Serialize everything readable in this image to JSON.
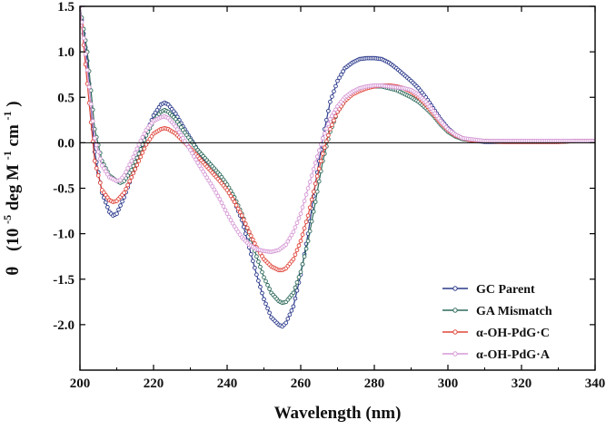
{
  "chart_data": {
    "type": "scatter",
    "title": "",
    "xlabel": "Wavelength (nm)",
    "ylabel": {
      "theta": "θ",
      "open": "(10",
      "exp": "-5",
      "deg": " deg M",
      "exp2": "-1",
      "cm": " cm",
      "exp3": "-1",
      "close": ")"
    },
    "xlim": [
      200,
      340
    ],
    "ylim": [
      -2.5,
      1.5
    ],
    "xticks": [
      200,
      220,
      240,
      260,
      280,
      300,
      320,
      340
    ],
    "xtick_labels": [
      "200",
      "220",
      "240",
      "260",
      "280",
      "300",
      "320",
      "340"
    ],
    "yticks": [
      -2.0,
      -1.5,
      -1.0,
      -0.5,
      0.0,
      0.5,
      1.0,
      1.5
    ],
    "ytick_labels": [
      "-2.0",
      "-1.5",
      "-1.0",
      "-0.5",
      "0.0",
      "0.5",
      "1.0",
      "1.5"
    ],
    "zero_line": true,
    "grid": false,
    "legend_position": "bottom-right",
    "series": [
      {
        "name": "GC Parent",
        "color": "#2c3a8c",
        "x": [
          200,
          202,
          204,
          206,
          208,
          209,
          210,
          212,
          214,
          216,
          218,
          220,
          222,
          223,
          224,
          226,
          228,
          230,
          232,
          234,
          236,
          238,
          240,
          242,
          244,
          246,
          248,
          250,
          252,
          254,
          255,
          256,
          258,
          260,
          262,
          264,
          266,
          268,
          270,
          272,
          274,
          276,
          278,
          280,
          282,
          284,
          286,
          288,
          290,
          292,
          294,
          296,
          298,
          300,
          302,
          304,
          306,
          308,
          310,
          315,
          320,
          325,
          330,
          335,
          340
        ],
        "y": [
          1.5,
          0.9,
          -0.1,
          -0.55,
          -0.76,
          -0.8,
          -0.78,
          -0.6,
          -0.38,
          -0.15,
          0.1,
          0.3,
          0.42,
          0.44,
          0.42,
          0.32,
          0.18,
          0.05,
          -0.08,
          -0.18,
          -0.28,
          -0.38,
          -0.5,
          -0.65,
          -0.85,
          -1.15,
          -1.45,
          -1.72,
          -1.92,
          -2.0,
          -2.02,
          -1.98,
          -1.8,
          -1.45,
          -1.0,
          -0.45,
          0.05,
          0.45,
          0.68,
          0.82,
          0.88,
          0.92,
          0.93,
          0.93,
          0.92,
          0.88,
          0.82,
          0.75,
          0.68,
          0.6,
          0.5,
          0.38,
          0.26,
          0.16,
          0.09,
          0.05,
          0.03,
          0.02,
          0.01,
          0.01,
          0.01,
          0.01,
          0.01,
          0.02,
          0.02
        ]
      },
      {
        "name": "GA Mismatch",
        "color": "#2f6b5c",
        "x": [
          200,
          202,
          204,
          206,
          208,
          210,
          211,
          212,
          214,
          216,
          218,
          220,
          222,
          223,
          224,
          226,
          228,
          230,
          232,
          234,
          236,
          238,
          240,
          242,
          244,
          246,
          248,
          250,
          252,
          254,
          255,
          256,
          258,
          260,
          262,
          264,
          266,
          268,
          270,
          272,
          274,
          276,
          278,
          280,
          282,
          284,
          286,
          288,
          290,
          292,
          294,
          296,
          298,
          300,
          302,
          304,
          306,
          308,
          310,
          315,
          320,
          325,
          330,
          335,
          340
        ],
        "y": [
          1.5,
          1.0,
          0.15,
          -0.2,
          -0.36,
          -0.42,
          -0.44,
          -0.42,
          -0.3,
          -0.12,
          0.08,
          0.24,
          0.34,
          0.36,
          0.34,
          0.26,
          0.14,
          0.03,
          -0.08,
          -0.17,
          -0.26,
          -0.35,
          -0.46,
          -0.6,
          -0.78,
          -1.0,
          -1.25,
          -1.48,
          -1.65,
          -1.74,
          -1.76,
          -1.75,
          -1.65,
          -1.42,
          -1.08,
          -0.65,
          -0.2,
          0.12,
          0.34,
          0.46,
          0.54,
          0.59,
          0.61,
          0.62,
          0.62,
          0.6,
          0.58,
          0.54,
          0.5,
          0.45,
          0.38,
          0.3,
          0.2,
          0.12,
          0.07,
          0.04,
          0.03,
          0.02,
          0.02,
          0.01,
          0.01,
          0.01,
          0.01,
          0.02,
          0.02
        ]
      },
      {
        "name": "α-OH-PdG·C",
        "color": "#e0473c",
        "x": [
          200,
          202,
          204,
          206,
          208,
          209,
          210,
          212,
          214,
          216,
          218,
          220,
          222,
          223,
          224,
          226,
          228,
          230,
          232,
          234,
          236,
          238,
          240,
          242,
          244,
          246,
          248,
          250,
          252,
          254,
          255,
          256,
          258,
          260,
          262,
          264,
          266,
          268,
          270,
          272,
          274,
          276,
          278,
          280,
          282,
          284,
          286,
          288,
          290,
          292,
          294,
          296,
          298,
          300,
          302,
          304,
          306,
          308,
          310,
          315,
          320,
          325,
          330,
          335,
          340
        ],
        "y": [
          1.5,
          0.65,
          -0.2,
          -0.52,
          -0.63,
          -0.65,
          -0.64,
          -0.55,
          -0.38,
          -0.2,
          -0.02,
          0.1,
          0.15,
          0.16,
          0.15,
          0.1,
          0.02,
          -0.06,
          -0.15,
          -0.24,
          -0.33,
          -0.42,
          -0.52,
          -0.65,
          -0.8,
          -0.98,
          -1.15,
          -1.28,
          -1.36,
          -1.4,
          -1.4,
          -1.38,
          -1.28,
          -1.08,
          -0.8,
          -0.45,
          -0.12,
          0.15,
          0.34,
          0.46,
          0.53,
          0.57,
          0.6,
          0.62,
          0.63,
          0.63,
          0.62,
          0.6,
          0.56,
          0.5,
          0.42,
          0.32,
          0.22,
          0.14,
          0.08,
          0.05,
          0.03,
          0.02,
          0.02,
          0.01,
          0.01,
          0.01,
          0.01,
          0.02,
          0.02
        ]
      },
      {
        "name": "α-OH-PdG·A",
        "color": "#d69ad6",
        "x": [
          200,
          202,
          204,
          206,
          208,
          210,
          211,
          212,
          214,
          216,
          218,
          220,
          222,
          223,
          224,
          226,
          228,
          230,
          232,
          234,
          236,
          238,
          240,
          242,
          244,
          246,
          248,
          250,
          252,
          254,
          256,
          258,
          260,
          262,
          264,
          266,
          268,
          270,
          272,
          274,
          276,
          278,
          280,
          282,
          284,
          286,
          288,
          290,
          292,
          294,
          296,
          298,
          300,
          302,
          304,
          306,
          308,
          310,
          315,
          320,
          325,
          330,
          335,
          340
        ],
        "y": [
          1.5,
          0.8,
          0.05,
          -0.25,
          -0.38,
          -0.42,
          -0.41,
          -0.36,
          -0.2,
          -0.02,
          0.14,
          0.24,
          0.28,
          0.29,
          0.27,
          0.18,
          0.05,
          -0.08,
          -0.22,
          -0.35,
          -0.48,
          -0.62,
          -0.78,
          -0.92,
          -1.04,
          -1.12,
          -1.17,
          -1.19,
          -1.2,
          -1.18,
          -1.12,
          -0.98,
          -0.78,
          -0.5,
          -0.22,
          0.05,
          0.26,
          0.4,
          0.5,
          0.56,
          0.6,
          0.62,
          0.63,
          0.63,
          0.62,
          0.61,
          0.6,
          0.58,
          0.53,
          0.45,
          0.35,
          0.24,
          0.15,
          0.09,
          0.05,
          0.04,
          0.03,
          0.02,
          0.02,
          0.02,
          0.02,
          0.02,
          0.02,
          0.02
        ]
      }
    ]
  }
}
